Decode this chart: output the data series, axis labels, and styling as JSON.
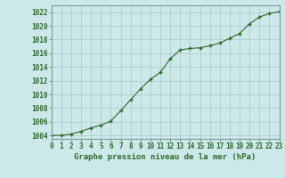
{
  "x": [
    0,
    1,
    2,
    3,
    4,
    5,
    6,
    7,
    8,
    9,
    10,
    11,
    12,
    13,
    14,
    15,
    16,
    17,
    18,
    19,
    20,
    21,
    22,
    23
  ],
  "y": [
    1004.0,
    1004.0,
    1004.2,
    1004.6,
    1005.1,
    1005.5,
    1006.1,
    1007.6,
    1009.2,
    1010.8,
    1012.2,
    1013.2,
    1015.2,
    1016.5,
    1016.7,
    1016.8,
    1017.1,
    1017.5,
    1018.2,
    1018.9,
    1020.3,
    1021.3,
    1021.8,
    1022.1
  ],
  "line_color": "#2d6a2d",
  "marker_color": "#2d6a2d",
  "bg_color": "#cce8e8",
  "grid_color": "#b0c8c8",
  "spine_color": "#7a9a9a",
  "title": "Graphe pression niveau de la mer (hPa)",
  "xlim": [
    0,
    23
  ],
  "ylim": [
    1003.5,
    1023.0
  ],
  "yticks": [
    1004,
    1006,
    1008,
    1010,
    1012,
    1014,
    1016,
    1018,
    1020,
    1022
  ],
  "xticks": [
    0,
    1,
    2,
    3,
    4,
    5,
    6,
    7,
    8,
    9,
    10,
    11,
    12,
    13,
    14,
    15,
    16,
    17,
    18,
    19,
    20,
    21,
    22,
    23
  ],
  "tick_fontsize": 5.5,
  "title_fontsize": 6.5,
  "linewidth": 0.8,
  "markersize": 3.0
}
